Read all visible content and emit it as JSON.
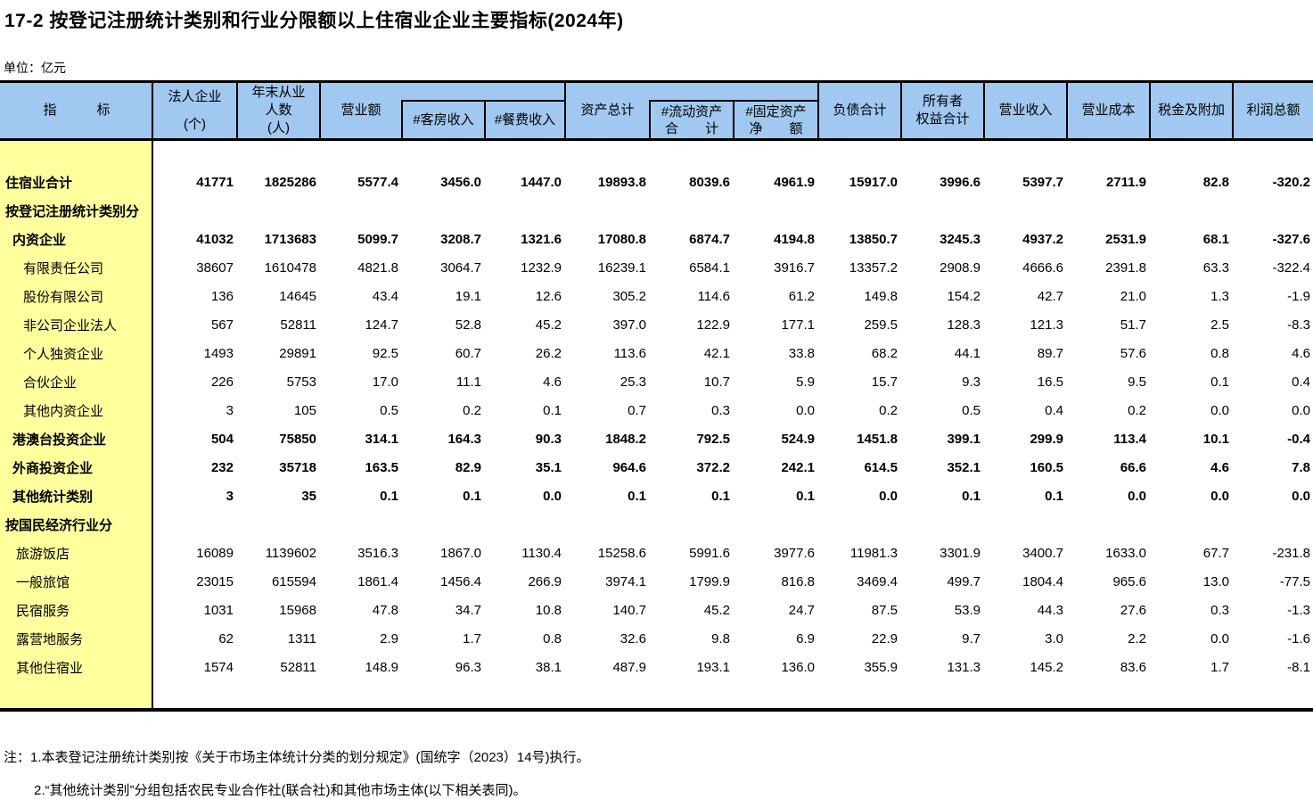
{
  "title": "17-2  按登记注册统计类别和行业分限额以上住宿业企业主要指标(2024年)",
  "unit_label": "单位：亿元",
  "colors": {
    "header_bg": "#A0C8F0",
    "stub_bg": "#FFFF9E",
    "border": "#000000"
  },
  "table": {
    "header": {
      "indicator": "指　　　标",
      "legal_entities": {
        "line1": "法人企业",
        "line2": "(个)"
      },
      "employees": {
        "line1": "年末从业",
        "line2": "人数",
        "line3": "(人)"
      },
      "turnover": "营业额",
      "room_income": "#客房收入",
      "food_income": "#餐费收入",
      "total_assets": "资产总计",
      "current_assets": {
        "line1": "#流动资产",
        "line2": "合　　计"
      },
      "fixed_assets": {
        "line1": "#固定资产",
        "line2": "净　　额"
      },
      "liabilities": "负债合计",
      "owners_equity": {
        "line1": "所有者",
        "line2": "权益合计"
      },
      "operating_revenue": "营业收入",
      "operating_cost": "营业成本",
      "taxes_surcharges": "税金及附加",
      "total_profit": "利润总额"
    },
    "rows": [
      {
        "label": "住宿业合计",
        "indent": 0,
        "bold": true,
        "values": [
          "41771",
          "1825286",
          "5577.4",
          "3456.0",
          "1447.0",
          "19893.8",
          "8039.6",
          "4961.9",
          "15917.0",
          "3996.6",
          "5397.7",
          "2711.9",
          "82.8",
          "-320.2"
        ]
      },
      {
        "label": "按登记注册统计类别分",
        "indent": 0,
        "bold": true,
        "values": []
      },
      {
        "label": "内资企业",
        "indent": 1,
        "bold": true,
        "values": [
          "41032",
          "1713683",
          "5099.7",
          "3208.7",
          "1321.6",
          "17080.8",
          "6874.7",
          "4194.8",
          "13850.7",
          "3245.3",
          "4937.2",
          "2531.9",
          "68.1",
          "-327.6"
        ]
      },
      {
        "label": "有限责任公司",
        "indent": 3,
        "bold": false,
        "values": [
          "38607",
          "1610478",
          "4821.8",
          "3064.7",
          "1232.9",
          "16239.1",
          "6584.1",
          "3916.7",
          "13357.2",
          "2908.9",
          "4666.6",
          "2391.8",
          "63.3",
          "-322.4"
        ]
      },
      {
        "label": "股份有限公司",
        "indent": 3,
        "bold": false,
        "values": [
          "136",
          "14645",
          "43.4",
          "19.1",
          "12.6",
          "305.2",
          "114.6",
          "61.2",
          "149.8",
          "154.2",
          "42.7",
          "21.0",
          "1.3",
          "-1.9"
        ]
      },
      {
        "label": "非公司企业法人",
        "indent": 3,
        "bold": false,
        "values": [
          "567",
          "52811",
          "124.7",
          "52.8",
          "45.2",
          "397.0",
          "122.9",
          "177.1",
          "259.5",
          "128.3",
          "121.3",
          "51.7",
          "2.5",
          "-8.3"
        ]
      },
      {
        "label": "个人独资企业",
        "indent": 3,
        "bold": false,
        "values": [
          "1493",
          "29891",
          "92.5",
          "60.7",
          "26.2",
          "113.6",
          "42.1",
          "33.8",
          "68.2",
          "44.1",
          "89.7",
          "57.6",
          "0.8",
          "4.6"
        ]
      },
      {
        "label": "合伙企业",
        "indent": 3,
        "bold": false,
        "values": [
          "226",
          "5753",
          "17.0",
          "11.1",
          "4.6",
          "25.3",
          "10.7",
          "5.9",
          "15.7",
          "9.3",
          "16.5",
          "9.5",
          "0.1",
          "0.4"
        ]
      },
      {
        "label": "其他内资企业",
        "indent": 3,
        "bold": false,
        "values": [
          "3",
          "105",
          "0.5",
          "0.2",
          "0.1",
          "0.7",
          "0.3",
          "0.0",
          "0.2",
          "0.5",
          "0.4",
          "0.2",
          "0.0",
          "0.0"
        ]
      },
      {
        "label": "港澳台投资企业",
        "indent": 1,
        "bold": true,
        "values": [
          "504",
          "75850",
          "314.1",
          "164.3",
          "90.3",
          "1848.2",
          "792.5",
          "524.9",
          "1451.8",
          "399.1",
          "299.9",
          "113.4",
          "10.1",
          "-0.4"
        ]
      },
      {
        "label": "外商投资企业",
        "indent": 1,
        "bold": true,
        "values": [
          "232",
          "35718",
          "163.5",
          "82.9",
          "35.1",
          "964.6",
          "372.2",
          "242.1",
          "614.5",
          "352.1",
          "160.5",
          "66.6",
          "4.6",
          "7.8"
        ]
      },
      {
        "label": "其他统计类别",
        "indent": 1,
        "bold": true,
        "values": [
          "3",
          "35",
          "0.1",
          "0.1",
          "0.0",
          "0.1",
          "0.1",
          "0.1",
          "0.0",
          "0.1",
          "0.1",
          "0.0",
          "0.0",
          "0.0"
        ]
      },
      {
        "label": "按国民经济行业分",
        "indent": 0,
        "bold": true,
        "values": []
      },
      {
        "label": "旅游饭店",
        "indent": 2,
        "bold": false,
        "values": [
          "16089",
          "1139602",
          "3516.3",
          "1867.0",
          "1130.4",
          "15258.6",
          "5991.6",
          "3977.6",
          "11981.3",
          "3301.9",
          "3400.7",
          "1633.0",
          "67.7",
          "-231.8"
        ]
      },
      {
        "label": "一般旅馆",
        "indent": 2,
        "bold": false,
        "values": [
          "23015",
          "615594",
          "1861.4",
          "1456.4",
          "266.9",
          "3974.1",
          "1799.9",
          "816.8",
          "3469.4",
          "499.7",
          "1804.4",
          "965.6",
          "13.0",
          "-77.5"
        ]
      },
      {
        "label": "民宿服务",
        "indent": 2,
        "bold": false,
        "values": [
          "1031",
          "15968",
          "47.8",
          "34.7",
          "10.8",
          "140.7",
          "45.2",
          "24.7",
          "87.5",
          "53.9",
          "44.3",
          "27.6",
          "0.3",
          "-1.3"
        ]
      },
      {
        "label": "露营地服务",
        "indent": 2,
        "bold": false,
        "values": [
          "62",
          "1311",
          "2.9",
          "1.7",
          "0.8",
          "32.6",
          "9.8",
          "6.9",
          "22.9",
          "9.7",
          "3.0",
          "2.2",
          "0.0",
          "-1.6"
        ]
      },
      {
        "label": "其他住宿业",
        "indent": 2,
        "bold": false,
        "values": [
          "1574",
          "52811",
          "148.9",
          "96.3",
          "38.1",
          "487.9",
          "193.1",
          "136.0",
          "355.9",
          "131.3",
          "145.2",
          "83.6",
          "1.7",
          "-8.1"
        ]
      }
    ]
  },
  "notes": {
    "line1": "注：1.本表登记注册统计类别按《关于市场主体统计分类的划分规定》(国统字（2023）14号)执行。",
    "line2": "2.“其他统计类别”分组包括农民专业合作社(联合社)和其他市场主体(以下相关表同)。"
  }
}
